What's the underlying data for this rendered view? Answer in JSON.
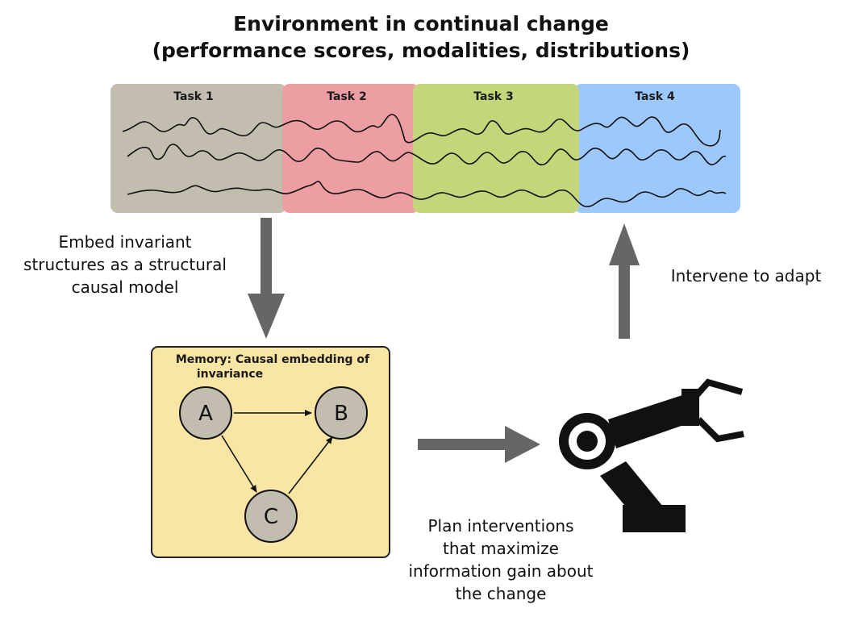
{
  "title": {
    "line1": "Environment in continual change",
    "line2": "(performance scores, modalities, distributions)"
  },
  "tasks": [
    {
      "label": "Task 1",
      "color": "#c3bdb0"
    },
    {
      "label": "Task 2",
      "color": "#ed9ea3"
    },
    {
      "label": "Task 3",
      "color": "#c3d77a"
    },
    {
      "label": "Task 4",
      "color": "#9cc8fb"
    }
  ],
  "captions": {
    "embed": [
      "Embed invariant",
      "structures as a structural",
      "causal model"
    ],
    "intervene": "Intervene to adapt",
    "plan": [
      "Plan interventions",
      "that maximize",
      "information gain about",
      "the change"
    ]
  },
  "memory": {
    "title_line1": "Memory: Causal embedding of",
    "title_line2": "invariance",
    "color": "#fae6a4",
    "nodes": [
      {
        "label": "A"
      },
      {
        "label": "B"
      },
      {
        "label": "C"
      }
    ]
  },
  "icons": {
    "robot": "robot-arm-icon",
    "arrow_down": "arrow-down-icon",
    "arrow_up": "arrow-up-icon",
    "arrow_right": "arrow-right-icon"
  }
}
